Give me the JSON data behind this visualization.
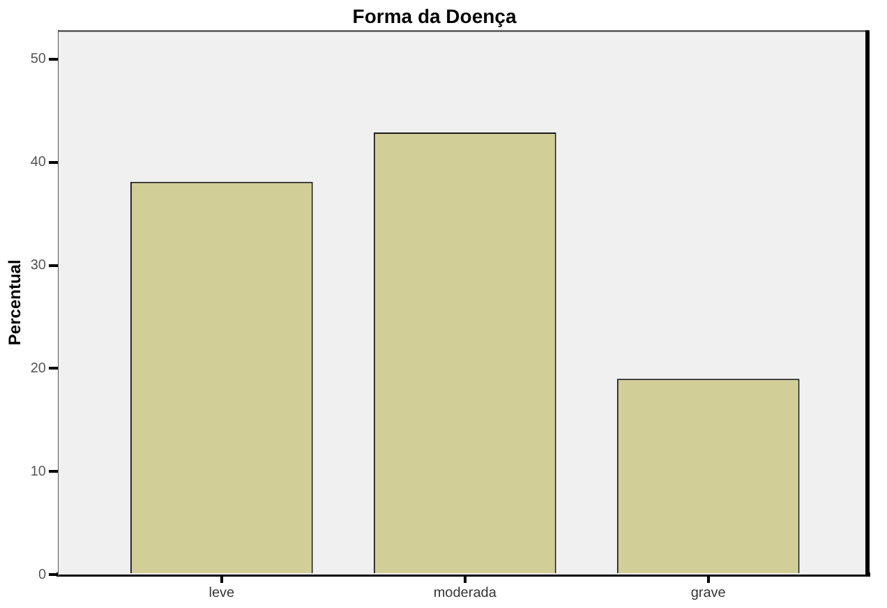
{
  "chart_data": {
    "type": "bar",
    "title": "Forma da Doença",
    "ylabel": "Percentual",
    "categories": [
      "leve",
      "moderada",
      "grave"
    ],
    "values": [
      38.1,
      42.9,
      19.0
    ],
    "color": "#d2ce98",
    "ylim": [
      0,
      52.8
    ],
    "yticks": [
      0,
      10,
      20,
      30,
      40,
      50
    ]
  }
}
